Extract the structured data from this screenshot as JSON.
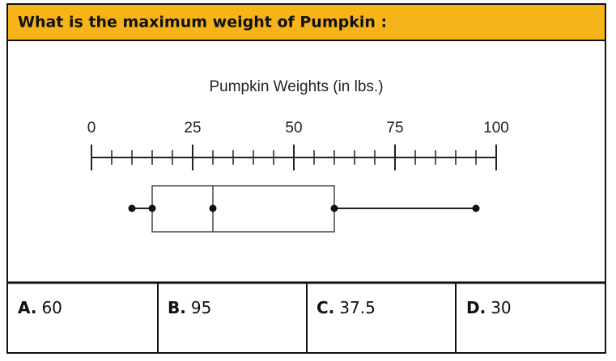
{
  "question": "What is the maximum weight of Pumpkin :",
  "chart_data": {
    "type": "box",
    "title": "Pumpkin Weights (in lbs.)",
    "xlim": [
      0,
      100
    ],
    "xticks": [
      0,
      25,
      50,
      75,
      100
    ],
    "xticks_minor": [
      5,
      10,
      15,
      20,
      30,
      35,
      40,
      45,
      55,
      60,
      65,
      70,
      80,
      85,
      90,
      95
    ],
    "min": 10,
    "q1": 15,
    "median": 30,
    "q3": 60,
    "max": 95
  },
  "answers": [
    {
      "letter": "A.",
      "text": "60"
    },
    {
      "letter": "B.",
      "text": "95"
    },
    {
      "letter": "C.",
      "text": "37.5"
    },
    {
      "letter": "D.",
      "text": "30"
    }
  ]
}
